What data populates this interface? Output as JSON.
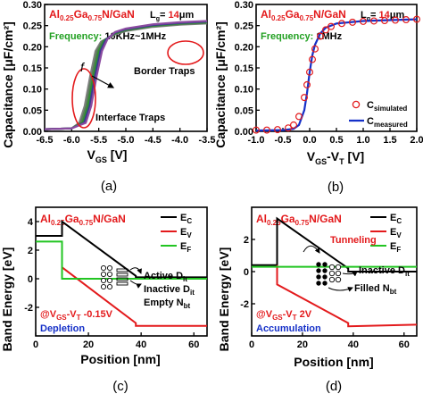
{
  "panel_a": {
    "label": "(a)",
    "material": {
      "pre": "Al",
      "s1": "0.25",
      "mid": "Ga",
      "s2": "0.75",
      "post": "N/GaN"
    },
    "lg": {
      "pre": "L",
      "sub": "g",
      "eq": "= ",
      "val": "14",
      "unit": "μm"
    },
    "frequency": "Frequency:",
    "frequency_value": "10KHz~1MHz",
    "ylabel": "Capacitance [μF/cm²]",
    "xlabel": "V",
    "xlabel_sub": "GS",
    "xlabel_unit": " [V]",
    "annotations": {
      "border": "Border Traps",
      "interface": "Interface Traps",
      "f": "f"
    },
    "xticks": [
      "-6.5",
      "-6.0",
      "-5.5",
      "-5.0",
      "-4.5",
      "-4.0",
      "-3.5"
    ],
    "yticks": [
      "0.00",
      "0.05",
      "0.10",
      "0.15",
      "0.20",
      "0.25",
      "0.30"
    ]
  },
  "panel_b": {
    "label": "(b)",
    "material": {
      "pre": "Al",
      "s1": "0.25",
      "mid": "Ga",
      "s2": "0.75",
      "post": "N/GaN"
    },
    "lg": {
      "pre": "L",
      "sub": "g",
      "eq": "= ",
      "val": "14",
      "unit": "μm"
    },
    "frequency": "Frequency:",
    "frequency_value": "1MHz",
    "ylabel": "Capacitance [μF/cm²]",
    "xlabel": "V",
    "xlabel_sub1": "GS",
    "xlabel_mid": "-V",
    "xlabel_sub2": "T",
    "xlabel_unit": " [V]",
    "legend": {
      "sim": "C",
      "sim_sub": "simulated",
      "meas": "C",
      "meas_sub": "measured"
    },
    "xticks": [
      "-1.0",
      "-0.5",
      "0.0",
      "0.5",
      "1.0",
      "1.5",
      "2.0"
    ],
    "yticks": [
      "0.00",
      "0.05",
      "0.10",
      "0.15",
      "0.20",
      "0.25",
      "0.30"
    ]
  },
  "panel_c": {
    "label": "(c)",
    "material": {
      "pre": "Al",
      "s1": "0.25",
      "mid": "Ga",
      "s2": "0.75",
      "post": "N/GaN"
    },
    "ylabel": "Band Energy [eV]",
    "xlabel": "Position [nm]",
    "legend": [
      {
        "name": "E",
        "sub": "C",
        "color": "#000000"
      },
      {
        "name": "E",
        "sub": "V",
        "color": "#e31a1c"
      },
      {
        "name": "E",
        "sub": "F",
        "color": "#22c522"
      }
    ],
    "active": "Active D",
    "active_sub": "it",
    "inactive": "Inactive D",
    "inactive_sub": "it",
    "empty": "Empty N",
    "empty_sub": "bt",
    "bias_pre": "@V",
    "bias_sub1": "GS",
    "bias_mid": "-V",
    "bias_sub2": "T",
    "bias_val": " -0.15V",
    "state": "Depletion",
    "xticks": [
      "0",
      "20",
      "40",
      "60"
    ],
    "yticks": [
      "-2",
      "0",
      "2",
      "4"
    ]
  },
  "panel_d": {
    "label": "(d)",
    "material": {
      "pre": "Al",
      "s1": "0.25",
      "mid": "Ga",
      "s2": "0.75",
      "post": "N/GaN"
    },
    "ylabel": "Band Energy [eV]",
    "xlabel": "Position [nm]",
    "legend": [
      {
        "name": "E",
        "sub": "C",
        "color": "#000000"
      },
      {
        "name": "E",
        "sub": "V",
        "color": "#e31a1c"
      },
      {
        "name": "E",
        "sub": "F",
        "color": "#22c522"
      }
    ],
    "tunneling": "Tunneling",
    "inactive": "Inactive D",
    "inactive_sub": "it",
    "filled": "Filled N",
    "filled_sub": "bt",
    "bias_pre": "@V",
    "bias_sub1": "GS",
    "bias_mid": "-V",
    "bias_sub2": "T",
    "bias_val": " 2V",
    "state": "Accumulation",
    "xticks": [
      "0",
      "20",
      "40",
      "60"
    ],
    "yticks": [
      "-2",
      "0",
      "2"
    ]
  },
  "colors": {
    "red": "#e31a1c",
    "green": "#22a022",
    "blue": "#1530c8",
    "navy": "#1a1aa0"
  },
  "chart_data": [
    {
      "type": "line",
      "panel": "a",
      "title": "",
      "xlabel": "VGS [V]",
      "ylabel": "Capacitance [μF/cm2]",
      "xlim": [
        -6.5,
        -3.5
      ],
      "ylim": [
        0,
        0.3
      ],
      "series": [
        {
          "name": "",
          "x": [
            -6.5,
            -6.0,
            -5.8,
            -5.7,
            -5.6,
            -5.5,
            -5.4,
            -5.2,
            -5.0,
            -4.5,
            -4.0,
            -3.5
          ],
          "y": [
            0.005,
            0.007,
            0.02,
            0.06,
            0.13,
            0.19,
            0.215,
            0.232,
            0.24,
            0.25,
            0.255,
            0.258
          ]
        }
      ]
    },
    {
      "type": "line",
      "panel": "b",
      "title": "",
      "xlabel": "VGS-VT [V]",
      "ylabel": "Capacitance [μF/cm2]",
      "xlim": [
        -1.0,
        2.0
      ],
      "ylim": [
        0,
        0.3
      ],
      "series": [
        {
          "name": "Csimulated",
          "x": [
            -1.0,
            -0.8,
            -0.6,
            -0.4,
            -0.3,
            -0.2,
            -0.1,
            -0.05,
            0.0,
            0.05,
            0.1,
            0.2,
            0.3,
            0.4,
            0.6,
            0.8,
            1.0,
            1.2,
            1.4,
            1.6,
            1.8,
            2.0
          ],
          "y": [
            0.003,
            0.003,
            0.004,
            0.008,
            0.015,
            0.035,
            0.08,
            0.11,
            0.14,
            0.17,
            0.195,
            0.225,
            0.24,
            0.248,
            0.255,
            0.258,
            0.26,
            0.261,
            0.262,
            0.263,
            0.264,
            0.265
          ]
        },
        {
          "name": "Cmeasured",
          "x": [
            -1.0,
            -0.5,
            -0.3,
            -0.2,
            -0.1,
            -0.05,
            0.0,
            0.05,
            0.1,
            0.2,
            0.3,
            0.5,
            1.0,
            1.5,
            2.0
          ],
          "y": [
            0.002,
            0.003,
            0.006,
            0.015,
            0.05,
            0.09,
            0.14,
            0.18,
            0.205,
            0.232,
            0.245,
            0.255,
            0.261,
            0.263,
            0.265
          ]
        }
      ]
    },
    {
      "type": "line",
      "panel": "c",
      "title": "",
      "xlabel": "Position [nm]",
      "ylabel": "Band Energy [eV]",
      "xlim": [
        0,
        65
      ],
      "ylim": [
        -4,
        5
      ],
      "series": [
        {
          "name": "EC",
          "x": [
            0,
            10,
            10,
            38,
            38,
            65
          ],
          "y": [
            3.0,
            3.0,
            4.0,
            0.2,
            0.1,
            0.1
          ]
        },
        {
          "name": "EV",
          "x": [
            10,
            10,
            38,
            38,
            65
          ],
          "y": [
            2.6,
            0.8,
            -3.1,
            -3.3,
            -3.3
          ]
        },
        {
          "name": "EF",
          "x": [
            0,
            10,
            10,
            65
          ],
          "y": [
            2.6,
            2.6,
            0.0,
            0.0
          ]
        }
      ]
    },
    {
      "type": "line",
      "panel": "d",
      "title": "",
      "xlabel": "Position [nm]",
      "ylabel": "Band Energy [eV]",
      "xlim": [
        0,
        65
      ],
      "ylim": [
        -4,
        4
      ],
      "series": [
        {
          "name": "EC",
          "x": [
            0,
            10,
            10,
            38,
            38,
            65
          ],
          "y": [
            0.4,
            0.4,
            3.3,
            0.2,
            0.0,
            0.0
          ]
        },
        {
          "name": "EV",
          "x": [
            10,
            10,
            38,
            38,
            65
          ],
          "y": [
            0.4,
            -0.8,
            -3.2,
            -3.4,
            -3.3
          ]
        },
        {
          "name": "EF",
          "x": [
            0,
            65
          ],
          "y": [
            0.3,
            0.3
          ]
        }
      ]
    }
  ]
}
